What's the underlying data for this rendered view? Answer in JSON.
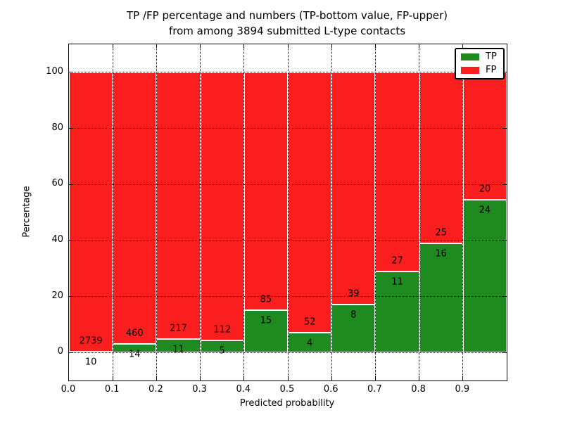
{
  "figure": {
    "title_line1": "TP /FP percentage and numbers (TP-bottom value, FP-upper)",
    "title_line2": "from among 3894 submitted L-type contacts",
    "background_color": "#ffffff"
  },
  "chart_data": {
    "type": "bar",
    "subtype": "stacked-percentage",
    "title": "TP /FP percentage and numbers (TP-bottom value, FP-upper) from among 3894 submitted L-type contacts",
    "xlabel": "Predicted probability",
    "ylabel": "Percentage",
    "total_contacts": 3894,
    "xlim": [
      0.0,
      1.0
    ],
    "ylim": [
      -10,
      110
    ],
    "x_tick_labels": [
      "0.0",
      "0.1",
      "0.2",
      "0.3",
      "0.4",
      "0.5",
      "0.6",
      "0.7",
      "0.8",
      "0.9"
    ],
    "y_tick_values": [
      0,
      20,
      40,
      60,
      80,
      100
    ],
    "bin_edges": [
      0.0,
      0.1,
      0.2,
      0.3,
      0.4,
      0.5,
      0.6,
      0.7,
      0.8,
      0.9,
      1.0
    ],
    "categories": [
      "0.0-0.1",
      "0.1-0.2",
      "0.2-0.3",
      "0.3-0.4",
      "0.4-0.5",
      "0.5-0.6",
      "0.6-0.7",
      "0.7-0.8",
      "0.8-0.9",
      "0.9-1.0"
    ],
    "series": [
      {
        "name": "TP",
        "color": "#1f8a1f",
        "counts": [
          10,
          14,
          11,
          5,
          15,
          4,
          8,
          11,
          16,
          24
        ],
        "percent": [
          0.36,
          2.95,
          4.82,
          4.27,
          15.0,
          7.14,
          17.02,
          28.95,
          39.02,
          54.55
        ]
      },
      {
        "name": "FP",
        "color": "#fa1e1e",
        "counts": [
          2739,
          460,
          217,
          112,
          85,
          52,
          39,
          27,
          25,
          20
        ],
        "percent": [
          99.64,
          97.05,
          95.18,
          95.73,
          85.0,
          92.86,
          82.98,
          71.05,
          60.98,
          45.45
        ]
      }
    ],
    "grid": "dotted-black-both-axes",
    "legend_position": "upper right",
    "tick_direction": "in",
    "bar_edge_color": "#ffffff"
  }
}
